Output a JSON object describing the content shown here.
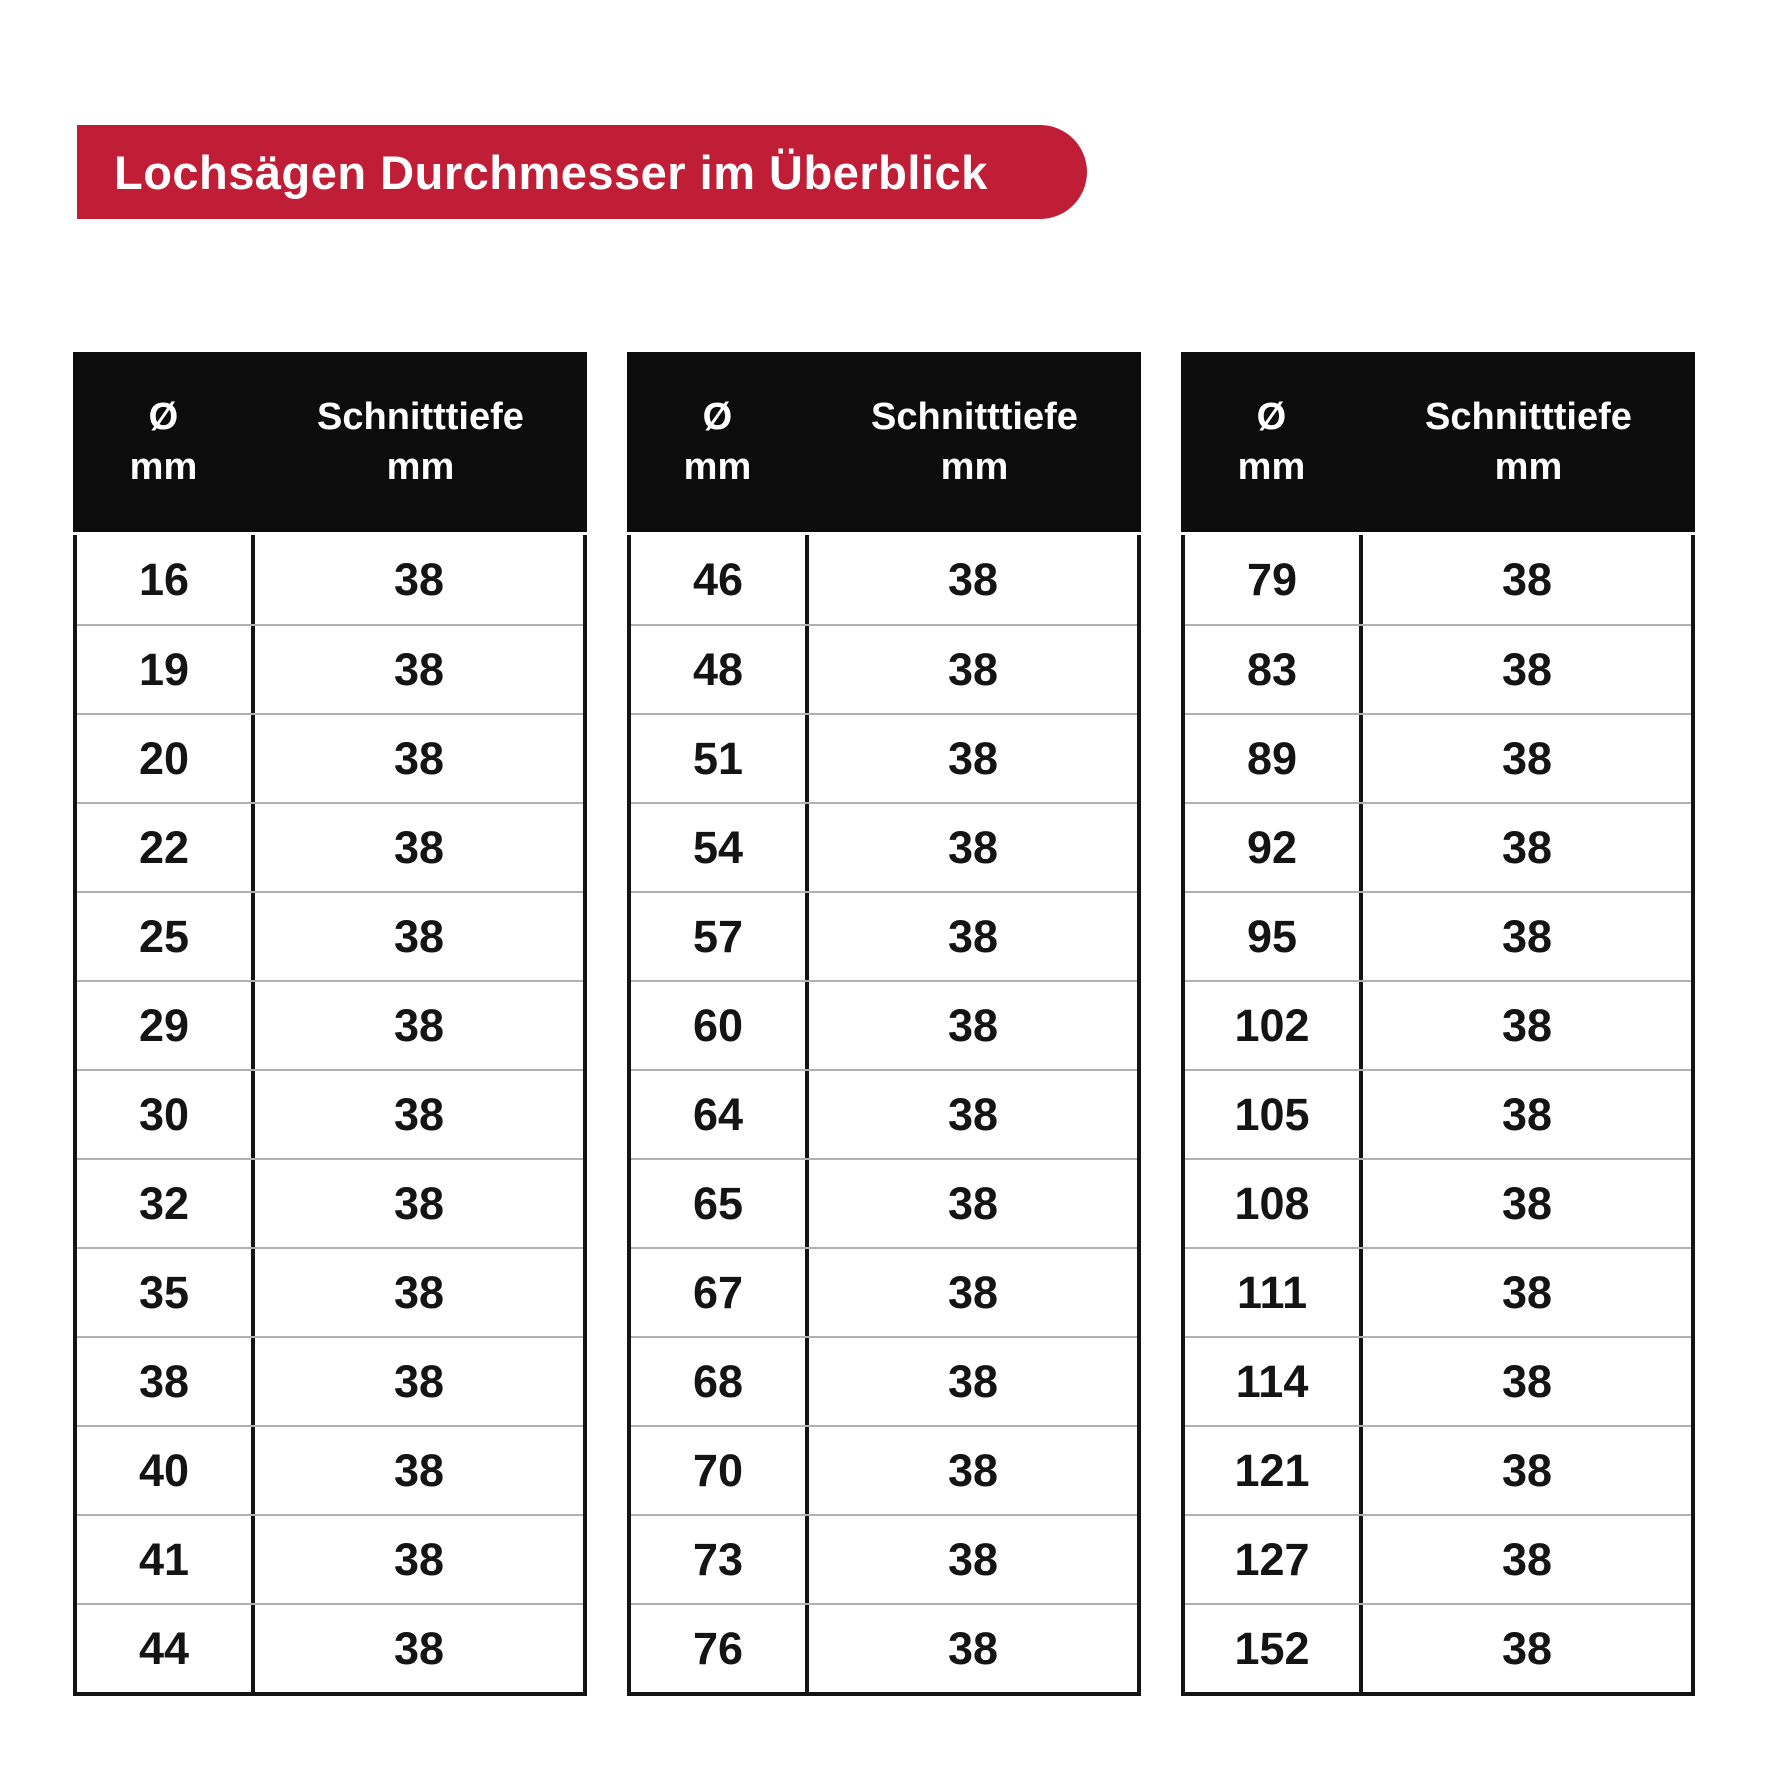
{
  "title": "Lochsägen Durchmesser im Überblick",
  "column_headers": {
    "diameter_line1": "Ø",
    "diameter_line2": "mm",
    "depth_line1": "Schnitttiefe",
    "depth_line2": "mm"
  },
  "colors": {
    "badge_red": "#C01D36",
    "header_black": "#0C0C0C",
    "row_divider_gray": "#B0B0B0"
  },
  "chart_data": {
    "type": "table",
    "title": "Lochsägen Durchmesser im Überblick",
    "columns": [
      "Ø mm",
      "Schnitttiefe mm"
    ],
    "tables": [
      {
        "rows": [
          [
            16,
            38
          ],
          [
            19,
            38
          ],
          [
            20,
            38
          ],
          [
            22,
            38
          ],
          [
            25,
            38
          ],
          [
            29,
            38
          ],
          [
            30,
            38
          ],
          [
            32,
            38
          ],
          [
            35,
            38
          ],
          [
            38,
            38
          ],
          [
            40,
            38
          ],
          [
            41,
            38
          ],
          [
            44,
            38
          ]
        ]
      },
      {
        "rows": [
          [
            46,
            38
          ],
          [
            48,
            38
          ],
          [
            51,
            38
          ],
          [
            54,
            38
          ],
          [
            57,
            38
          ],
          [
            60,
            38
          ],
          [
            64,
            38
          ],
          [
            65,
            38
          ],
          [
            67,
            38
          ],
          [
            68,
            38
          ],
          [
            70,
            38
          ],
          [
            73,
            38
          ],
          [
            76,
            38
          ]
        ]
      },
      {
        "rows": [
          [
            79,
            38
          ],
          [
            83,
            38
          ],
          [
            89,
            38
          ],
          [
            92,
            38
          ],
          [
            95,
            38
          ],
          [
            102,
            38
          ],
          [
            105,
            38
          ],
          [
            108,
            38
          ],
          [
            111,
            38
          ],
          [
            114,
            38
          ],
          [
            121,
            38
          ],
          [
            127,
            38
          ],
          [
            152,
            38
          ]
        ]
      }
    ]
  }
}
